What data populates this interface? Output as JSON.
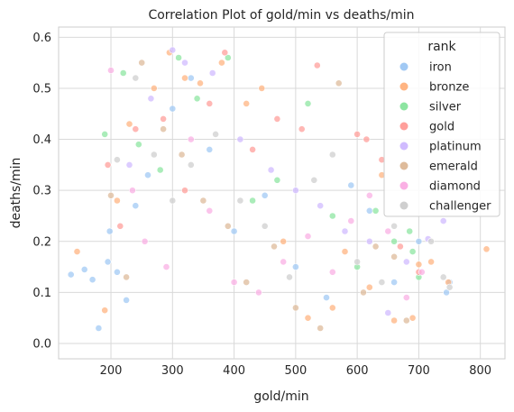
{
  "chart_data": {
    "type": "scatter",
    "title": "Correlation Plot of gold/min vs deaths/min",
    "xlabel": "gold/min",
    "ylabel": "deaths/min",
    "xlim": [
      115,
      840
    ],
    "ylim": [
      -0.03,
      0.62
    ],
    "xticks": [
      200,
      300,
      400,
      500,
      600,
      700,
      800
    ],
    "yticks": [
      0.0,
      0.1,
      0.2,
      0.3,
      0.4,
      0.5,
      0.6
    ],
    "ytick_labels": [
      "0.0",
      "0.1",
      "0.2",
      "0.3",
      "0.4",
      "0.5",
      "0.6"
    ],
    "grid": true,
    "legend": {
      "title": "rank",
      "placement": "top-right"
    },
    "series": [
      {
        "name": "iron",
        "color": "#a1c9f4",
        "values": [
          [
            135,
            0.135
          ],
          [
            157,
            0.145
          ],
          [
            170,
            0.125
          ],
          [
            180,
            0.03
          ],
          [
            195,
            0.16
          ],
          [
            198,
            0.22
          ],
          [
            210,
            0.14
          ],
          [
            225,
            0.085
          ],
          [
            240,
            0.27
          ],
          [
            260,
            0.33
          ],
          [
            300,
            0.46
          ],
          [
            330,
            0.52
          ],
          [
            360,
            0.38
          ],
          [
            400,
            0.22
          ],
          [
            450,
            0.29
          ],
          [
            500,
            0.15
          ],
          [
            550,
            0.09
          ],
          [
            590,
            0.31
          ],
          [
            620,
            0.26
          ],
          [
            660,
            0.12
          ],
          [
            700,
            0.2
          ],
          [
            750,
            0.12
          ],
          [
            745,
            0.1
          ]
        ]
      },
      {
        "name": "bronze",
        "color": "#ffb482",
        "values": [
          [
            145,
            0.18
          ],
          [
            190,
            0.065
          ],
          [
            210,
            0.28
          ],
          [
            230,
            0.43
          ],
          [
            270,
            0.5
          ],
          [
            295,
            0.57
          ],
          [
            320,
            0.52
          ],
          [
            345,
            0.51
          ],
          [
            380,
            0.55
          ],
          [
            420,
            0.47
          ],
          [
            445,
            0.5
          ],
          [
            480,
            0.2
          ],
          [
            520,
            0.05
          ],
          [
            560,
            0.07
          ],
          [
            580,
            0.18
          ],
          [
            620,
            0.11
          ],
          [
            660,
            0.045
          ],
          [
            690,
            0.05
          ],
          [
            720,
            0.16
          ],
          [
            748,
            0.12
          ],
          [
            810,
            0.185
          ],
          [
            640,
            0.33
          ],
          [
            700,
            0.155
          ]
        ]
      },
      {
        "name": "silver",
        "color": "#8de5a1",
        "values": [
          [
            190,
            0.41
          ],
          [
            220,
            0.53
          ],
          [
            245,
            0.39
          ],
          [
            280,
            0.34
          ],
          [
            310,
            0.56
          ],
          [
            340,
            0.48
          ],
          [
            390,
            0.56
          ],
          [
            430,
            0.28
          ],
          [
            470,
            0.32
          ],
          [
            520,
            0.47
          ],
          [
            560,
            0.25
          ],
          [
            600,
            0.15
          ],
          [
            630,
            0.26
          ],
          [
            660,
            0.2
          ],
          [
            685,
            0.22
          ],
          [
            690,
            0.18
          ],
          [
            700,
            0.13
          ]
        ]
      },
      {
        "name": "gold",
        "color": "#ff9f9b",
        "values": [
          [
            195,
            0.35
          ],
          [
            215,
            0.23
          ],
          [
            240,
            0.42
          ],
          [
            285,
            0.44
          ],
          [
            320,
            0.3
          ],
          [
            360,
            0.47
          ],
          [
            385,
            0.57
          ],
          [
            430,
            0.38
          ],
          [
            470,
            0.44
          ],
          [
            510,
            0.42
          ],
          [
            535,
            0.545
          ],
          [
            600,
            0.41
          ],
          [
            615,
            0.4
          ],
          [
            640,
            0.36
          ],
          [
            670,
            0.19
          ],
          [
            700,
            0.14
          ]
        ]
      },
      {
        "name": "platinum",
        "color": "#d0bbff",
        "values": [
          [
            230,
            0.35
          ],
          [
            265,
            0.48
          ],
          [
            300,
            0.575
          ],
          [
            320,
            0.55
          ],
          [
            365,
            0.53
          ],
          [
            410,
            0.4
          ],
          [
            460,
            0.34
          ],
          [
            500,
            0.3
          ],
          [
            540,
            0.27
          ],
          [
            580,
            0.22
          ],
          [
            620,
            0.2
          ],
          [
            650,
            0.06
          ],
          [
            680,
            0.16
          ],
          [
            715,
            0.205
          ],
          [
            740,
            0.24
          ]
        ]
      },
      {
        "name": "emerald",
        "color": "#debb9b",
        "values": [
          [
            200,
            0.29
          ],
          [
            225,
            0.13
          ],
          [
            250,
            0.55
          ],
          [
            285,
            0.42
          ],
          [
            315,
            0.37
          ],
          [
            350,
            0.28
          ],
          [
            390,
            0.23
          ],
          [
            420,
            0.12
          ],
          [
            465,
            0.19
          ],
          [
            500,
            0.07
          ],
          [
            540,
            0.03
          ],
          [
            570,
            0.51
          ],
          [
            610,
            0.1
          ],
          [
            630,
            0.19
          ],
          [
            660,
            0.17
          ],
          [
            680,
            0.045
          ]
        ]
      },
      {
        "name": "diamond",
        "color": "#fab0e4",
        "values": [
          [
            200,
            0.535
          ],
          [
            235,
            0.3
          ],
          [
            255,
            0.2
          ],
          [
            290,
            0.15
          ],
          [
            330,
            0.4
          ],
          [
            360,
            0.26
          ],
          [
            400,
            0.12
          ],
          [
            440,
            0.1
          ],
          [
            480,
            0.16
          ],
          [
            520,
            0.21
          ],
          [
            560,
            0.14
          ],
          [
            590,
            0.24
          ],
          [
            620,
            0.29
          ],
          [
            650,
            0.22
          ],
          [
            680,
            0.09
          ],
          [
            705,
            0.14
          ]
        ]
      },
      {
        "name": "challenger",
        "color": "#cfcfcf",
        "values": [
          [
            210,
            0.36
          ],
          [
            240,
            0.52
          ],
          [
            270,
            0.37
          ],
          [
            300,
            0.28
          ],
          [
            330,
            0.35
          ],
          [
            370,
            0.41
          ],
          [
            410,
            0.28
          ],
          [
            450,
            0.23
          ],
          [
            490,
            0.13
          ],
          [
            530,
            0.32
          ],
          [
            560,
            0.37
          ],
          [
            600,
            0.16
          ],
          [
            640,
            0.12
          ],
          [
            660,
            0.23
          ],
          [
            720,
            0.2
          ],
          [
            740,
            0.13
          ],
          [
            750,
            0.11
          ]
        ]
      }
    ]
  }
}
